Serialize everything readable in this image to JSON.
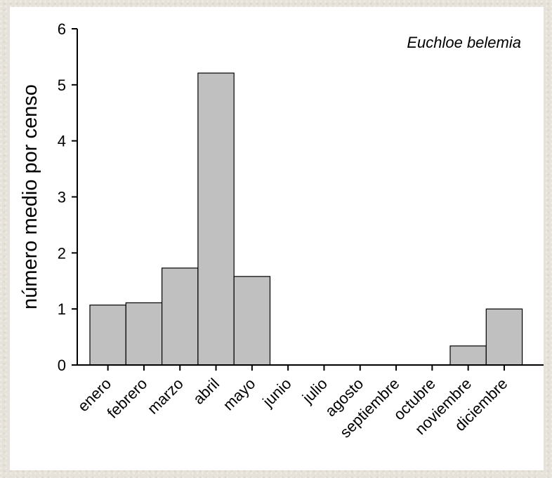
{
  "chart_data": {
    "type": "bar",
    "annotation": "Euchloe belemia",
    "ylabel": "número medio por censo",
    "xlabel": "",
    "ylim": [
      0,
      6
    ],
    "yticks": [
      0,
      1,
      2,
      3,
      4,
      5,
      6
    ],
    "categories": [
      "enero",
      "febrero",
      "marzo",
      "abril",
      "mayo",
      "junio",
      "julio",
      "agosto",
      "septiembre",
      "octubre",
      "noviembre",
      "diciembre"
    ],
    "values": [
      1.07,
      1.11,
      1.73,
      5.21,
      1.58,
      0,
      0,
      0,
      0,
      0,
      0.34,
      1.0
    ],
    "bar_color": "#c0c0c0",
    "bar_edge_color": "#000000",
    "grid": false
  }
}
